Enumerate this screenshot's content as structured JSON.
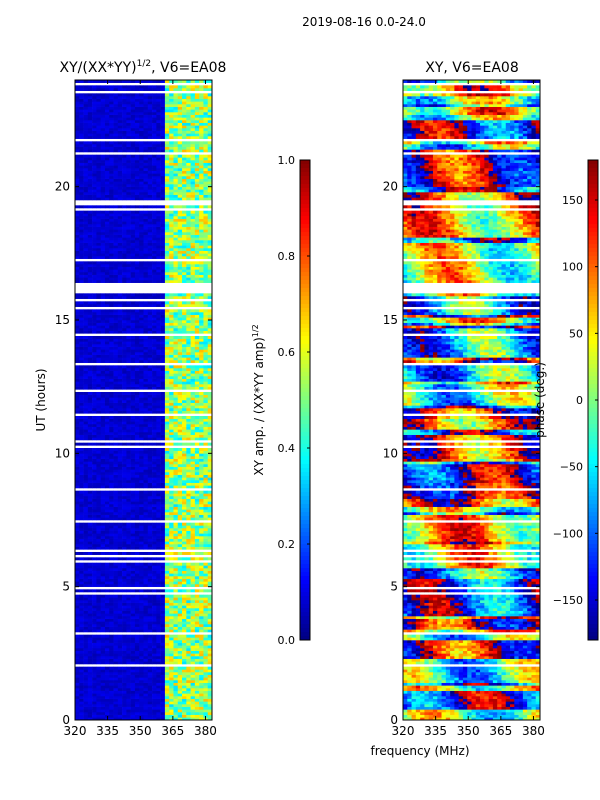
{
  "suptitle": "2019-08-16 0.0-24.0",
  "xlabel": "frequency (MHz)",
  "chart_data": [
    {
      "type": "heatmap",
      "title": "XY/(XX*YY)",
      "title_exp": "1/2",
      "title_suffix": ", V6=EA08",
      "ylabel": "UT (hours)",
      "xlim": [
        320,
        383
      ],
      "ylim": [
        0,
        24
      ],
      "xticks": [
        320,
        335,
        350,
        365,
        380
      ],
      "yticks": [
        0,
        5,
        10,
        15,
        20
      ],
      "colormap": "jet",
      "colorbar": {
        "label": "XY amp. / (XX*YY amp)",
        "label_exp": "1/2",
        "range": [
          0.0,
          1.0
        ],
        "ticks": [
          "0.0",
          "0.2",
          "0.4",
          "0.6",
          "0.8",
          "1.0"
        ],
        "tick_values": [
          0.0,
          0.2,
          0.4,
          0.6,
          0.8,
          1.0
        ]
      },
      "description_values": {
        "base_level": 0.08,
        "bright_band_mhz": [
          362,
          383
        ],
        "bright_level": 0.45
      }
    },
    {
      "type": "heatmap",
      "title": "XY, V6=EA08",
      "xlim": [
        320,
        383
      ],
      "ylim": [
        0,
        24
      ],
      "xticks": [
        320,
        335,
        350,
        365,
        380
      ],
      "yticks": [
        0,
        5,
        10,
        15,
        20
      ],
      "colormap": "jet",
      "colorbar": {
        "label": "phase (deg.)",
        "range": [
          -180,
          180
        ],
        "ticks": [
          "150",
          "100",
          "50",
          "0",
          "−50",
          "−100",
          "−150"
        ],
        "tick_values": [
          150,
          100,
          50,
          0,
          -50,
          -100,
          -150
        ]
      }
    }
  ]
}
